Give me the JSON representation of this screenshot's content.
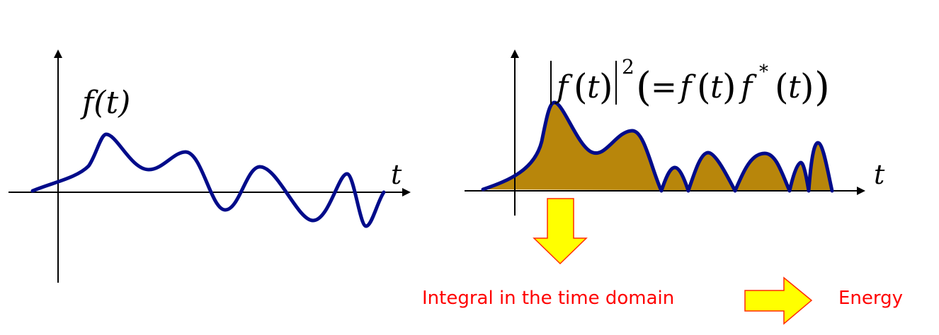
{
  "colors": {
    "curve": "#000b8a",
    "fill": "#b8860b",
    "axis": "#000000",
    "caption": "#ff0000",
    "arrow_fill": "#ffff00",
    "arrow_stroke": "#ff2a00"
  },
  "left_plot": {
    "function_label": "f(t)",
    "axis_label": "t"
  },
  "right_plot": {
    "label_f": "f",
    "label_t": "t",
    "label_exponent": "2",
    "label_equals": "=",
    "label_star": "*",
    "axis_label": "t"
  },
  "captions": {
    "integral": "Integral in the time domain",
    "energy": "Energy"
  },
  "icons": {
    "down_arrow": "down-arrow-icon",
    "right_arrow": "right-arrow-icon"
  }
}
